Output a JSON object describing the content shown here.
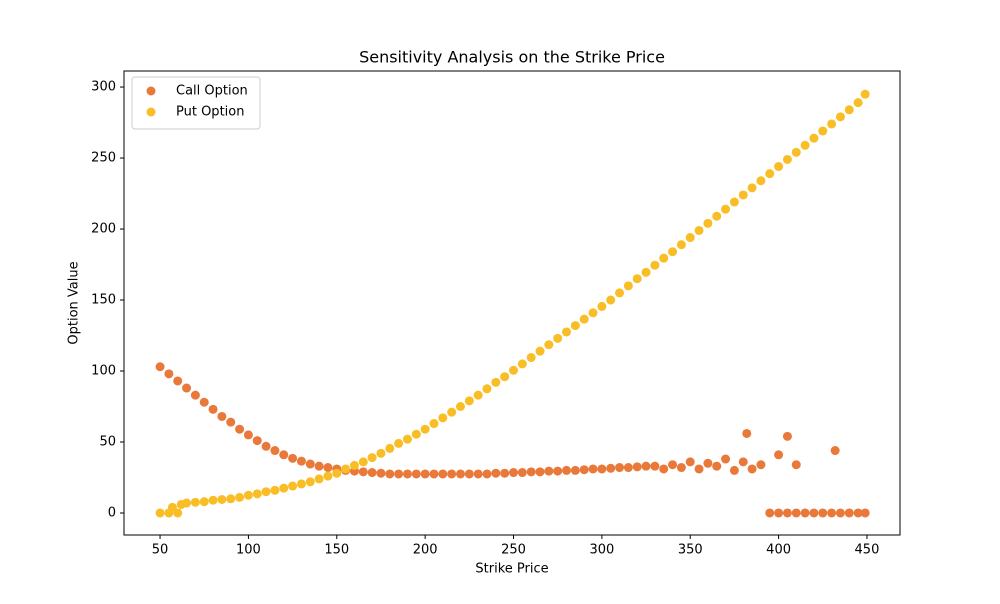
{
  "chart_data": {
    "type": "scatter",
    "title": "Sensitivity Analysis on the Strike Price",
    "x_label": "Strike Price",
    "y_label": "Option Value",
    "xlim": [
      29.6,
      468.7
    ],
    "ylim": [
      -15.5,
      311.3
    ],
    "xticks": [
      50,
      100,
      150,
      200,
      250,
      300,
      350,
      400,
      450
    ],
    "yticks": [
      0,
      50,
      100,
      150,
      200,
      250,
      300
    ],
    "grid": false,
    "legend": "upper left",
    "series": [
      {
        "name": "Call Option",
        "color": "#e8793a",
        "x": [
          50,
          55,
          60,
          65,
          70,
          75,
          80,
          85,
          90,
          95,
          100,
          105,
          110,
          115,
          120,
          125,
          130,
          135,
          140,
          145,
          150,
          155,
          160,
          165,
          170,
          175,
          180,
          185,
          190,
          195,
          200,
          205,
          210,
          215,
          220,
          225,
          230,
          235,
          240,
          245,
          250,
          255,
          260,
          265,
          270,
          275,
          280,
          285,
          290,
          295,
          300,
          305,
          310,
          315,
          320,
          325,
          330,
          335,
          340,
          345,
          350,
          355,
          360,
          365,
          370,
          375,
          380,
          385,
          390,
          395,
          400,
          405,
          410,
          415,
          420,
          425,
          430,
          435,
          440,
          445,
          449,
          382,
          400,
          405,
          410,
          432
        ],
        "values": [
          103,
          98,
          93,
          88,
          83,
          78,
          73,
          68,
          64,
          59,
          55,
          51,
          47,
          44,
          41,
          38.5,
          36.5,
          34.5,
          33,
          32,
          31,
          30,
          29.5,
          29,
          28.5,
          28,
          27.5,
          27.5,
          27.5,
          27.5,
          27.5,
          27.5,
          27.5,
          27.5,
          27.5,
          27.5,
          27.5,
          27.5,
          28,
          28,
          28.5,
          28.5,
          29,
          29,
          29.5,
          29.5,
          30,
          30,
          30.5,
          31,
          31,
          31.5,
          32,
          32,
          32.5,
          33,
          33,
          31,
          34,
          32,
          36,
          31,
          35,
          33,
          38,
          30,
          36,
          31,
          34,
          0,
          0,
          0,
          0,
          0,
          0,
          0,
          0,
          0,
          0,
          0,
          0,
          56,
          41,
          54,
          34,
          44
        ]
      },
      {
        "name": "Put Option",
        "color": "#f9be26",
        "x": [
          50,
          55,
          57,
          60,
          62,
          65,
          70,
          75,
          80,
          85,
          90,
          95,
          100,
          105,
          110,
          115,
          120,
          125,
          130,
          135,
          140,
          145,
          150,
          155,
          160,
          165,
          170,
          175,
          180,
          185,
          190,
          195,
          200,
          205,
          210,
          215,
          220,
          225,
          230,
          235,
          240,
          245,
          250,
          255,
          260,
          265,
          270,
          275,
          280,
          285,
          290,
          295,
          300,
          305,
          310,
          315,
          320,
          325,
          330,
          335,
          340,
          345,
          350,
          355,
          360,
          365,
          370,
          375,
          380,
          385,
          390,
          395,
          400,
          405,
          410,
          415,
          420,
          425,
          430,
          435,
          440,
          445,
          449
        ],
        "values": [
          0,
          0,
          4,
          0,
          6,
          7,
          7.5,
          8,
          9,
          9.5,
          10,
          11,
          12.5,
          13.5,
          15,
          16,
          17.5,
          19,
          20.5,
          22,
          24,
          26,
          28,
          31,
          33.5,
          36,
          39,
          42,
          45.5,
          49,
          52,
          55.5,
          59,
          63,
          67,
          71,
          75,
          79,
          83,
          87.5,
          92,
          96,
          100.5,
          105,
          109.5,
          114,
          118.5,
          123,
          127.5,
          132,
          136.5,
          141,
          145.5,
          150,
          155,
          160,
          165,
          169.5,
          174.5,
          179.5,
          184,
          189,
          194,
          199,
          204,
          209,
          214,
          219,
          224,
          229,
          234,
          239,
          244,
          249,
          254,
          259,
          264,
          269,
          274,
          279,
          284,
          289,
          295
        ]
      }
    ]
  }
}
